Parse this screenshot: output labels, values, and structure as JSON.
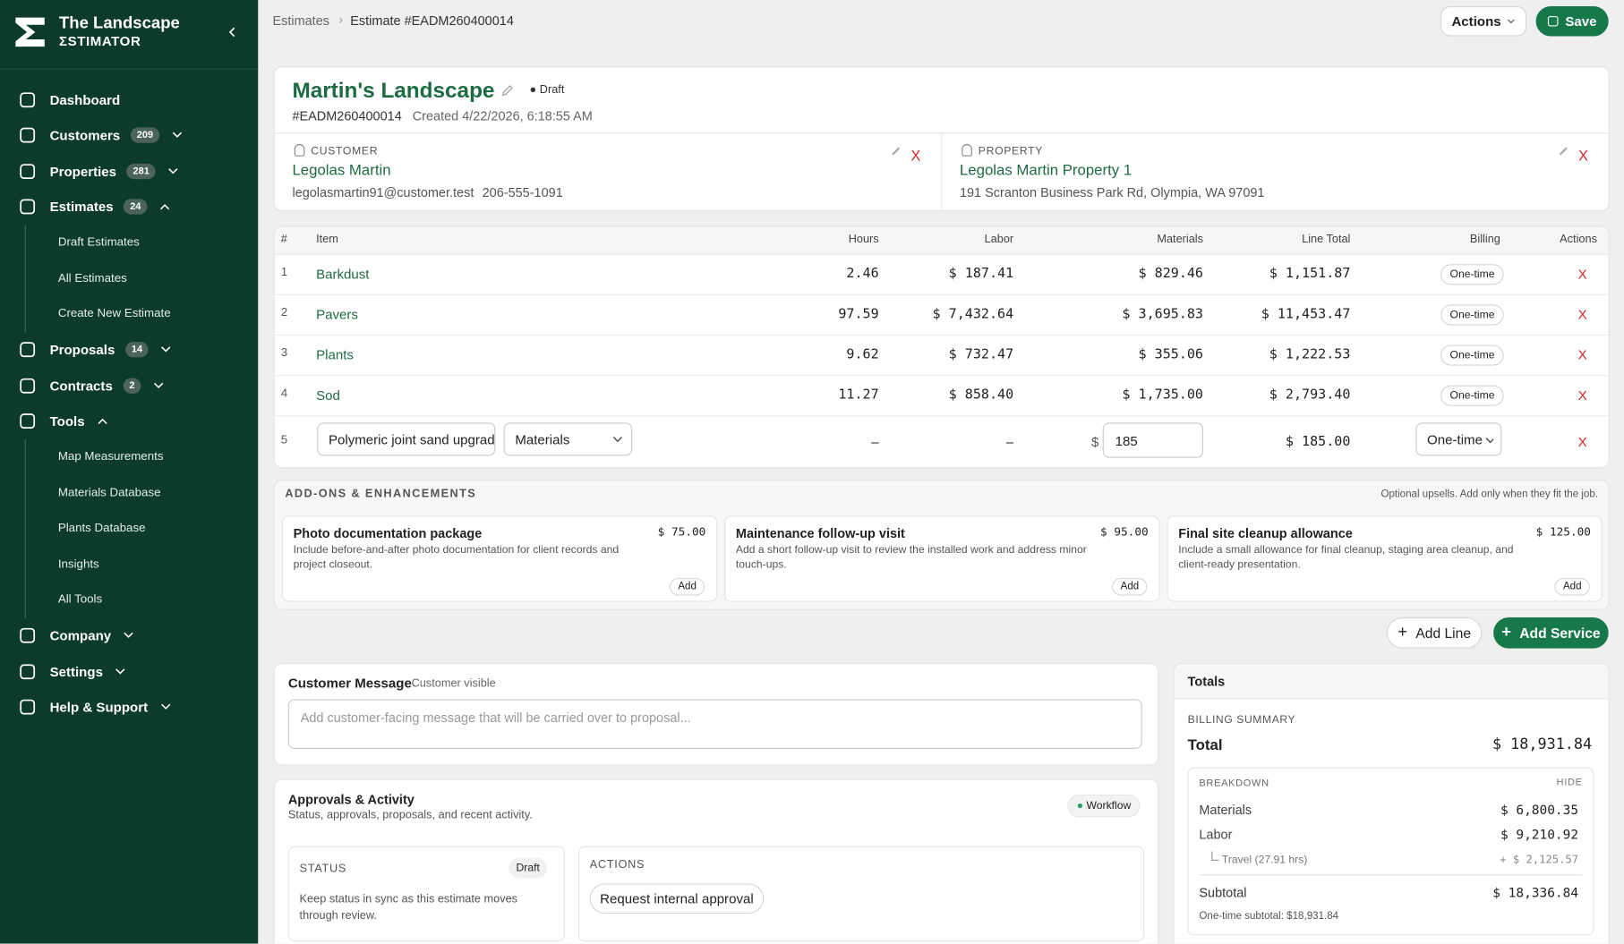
{
  "sidebar": {
    "brand": [
      "The Landscape",
      "ΣSTIMATOR"
    ],
    "nav": [
      {
        "label": "Dashboard"
      },
      {
        "label": "Customers",
        "badge": "209"
      },
      {
        "label": "Properties",
        "badge": "281"
      },
      {
        "label": "Estimates",
        "badge": "24",
        "children": [
          "Draft Estimates",
          "All Estimates",
          "Create New Estimate"
        ]
      },
      {
        "label": "Proposals",
        "badge": "14"
      },
      {
        "label": "Contracts",
        "badge": "2"
      },
      {
        "label": "Tools",
        "children": [
          "Map Measurements",
          "Materials Database",
          "Plants Database",
          "Insights",
          "All Tools"
        ]
      },
      {
        "label": "Company"
      },
      {
        "label": "Settings"
      },
      {
        "label": "Help & Support"
      }
    ]
  },
  "topbar": {
    "breadcrumb": [
      "Estimates",
      "Estimate #EADM260400014"
    ],
    "actions": "Actions",
    "save": "Save"
  },
  "header": {
    "title": "Martin's Landscape",
    "status": "Draft",
    "number": "#EADM260400014",
    "created": "Created 4/22/2026, 6:18:55 AM",
    "customer": {
      "label": "CUSTOMER",
      "name": "Legolas Martin",
      "email": "legolasmartin91@customer.test",
      "phone": "206-555-1091",
      "remove": "X"
    },
    "property": {
      "label": "PROPERTY",
      "name": "Legolas Martin Property 1",
      "address": "191 Scranton Business Park Rd, Olympia, WA 97091",
      "remove": "X"
    }
  },
  "table": {
    "columns": [
      "#",
      "Item",
      "Hours",
      "Labor",
      "Materials",
      "Line Total",
      "Billing",
      "Actions"
    ],
    "rows": [
      [
        "1",
        "Barkdust",
        "2.46",
        "$ 187.41",
        "$ 829.46",
        "$ 1,151.87",
        "One-time",
        "X"
      ],
      [
        "2",
        "Pavers",
        "97.59",
        "$ 7,432.64",
        "$ 3,695.83",
        "$ 11,453.47",
        "One-time",
        "X"
      ],
      [
        "3",
        "Plants",
        "9.62",
        "$ 732.47",
        "$ 355.06",
        "$ 1,222.53",
        "One-time",
        "X"
      ],
      [
        "4",
        "Sod",
        "11.27",
        "$ 858.40",
        "$ 1,735.00",
        "$ 2,793.40",
        "One-time",
        "X"
      ]
    ],
    "draft_row": {
      "index": "5",
      "item": "Polymeric joint sand upgrade",
      "type": "Materials",
      "hours": "–",
      "labor": "–",
      "currency": "$",
      "materials": "185",
      "line_total": "$ 185.00",
      "billing": "One-time",
      "remove": "X"
    }
  },
  "addons": {
    "title": "ADD-ONS & ENHANCEMENTS",
    "note": "Optional upsells. Add only when they fit the job.",
    "items": [
      {
        "title": "Photo documentation package",
        "price": "$ 75.00",
        "description": "Include before-and-after photo documentation for client records and project closeout.",
        "button": "Add"
      },
      {
        "title": "Maintenance follow-up visit",
        "price": "$ 95.00",
        "description": "Add a short follow-up visit to review the installed work and address minor touch-ups.",
        "button": "Add"
      },
      {
        "title": "Final site cleanup allowance",
        "price": "$ 125.00",
        "description": "Include a small allowance for final cleanup, staging area cleanup, and client-ready presentation.",
        "button": "Add"
      }
    ]
  },
  "buttons": {
    "add_line": "Add Line",
    "add_service": "Add Service"
  },
  "message": {
    "title": "Customer Message",
    "tag": "Customer visible",
    "placeholder": "Add customer-facing message that will be carried over to proposal..."
  },
  "approvals": {
    "title": "Approvals & Activity",
    "subtitle": "Status, approvals, proposals, and recent activity.",
    "badge": "Workflow",
    "status": {
      "label": "STATUS",
      "badge": "Draft",
      "text": "Keep status in sync as this estimate moves through review."
    },
    "actions": {
      "label": "ACTIONS",
      "button": "Request internal approval"
    }
  },
  "totals": {
    "title": "Totals",
    "summary_label": "BILLING SUMMARY",
    "total_label": "Total",
    "total": "$ 18,931.84",
    "breakdown_label": "BREAKDOWN",
    "hide": "HIDE",
    "rows": [
      [
        "Materials",
        "$ 6,800.35"
      ],
      [
        "Labor",
        "$ 9,210.92"
      ]
    ],
    "travel": [
      "Travel (27.91 hrs)",
      "+ $ 2,125.57"
    ],
    "subtotal": [
      "Subtotal",
      "$ 18,336.84"
    ],
    "onetime": "One-time subtotal: $18,931.84"
  }
}
